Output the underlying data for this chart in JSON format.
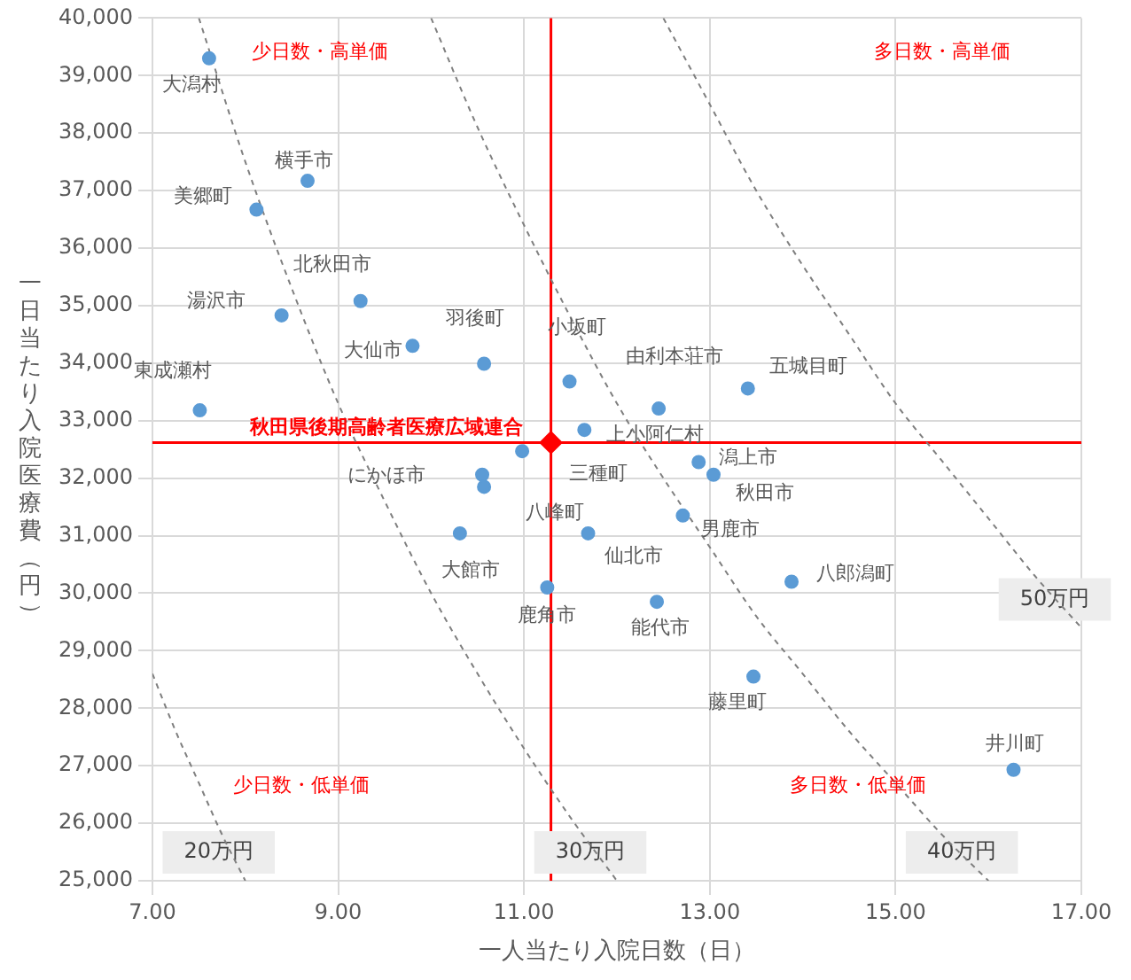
{
  "chart_data": {
    "type": "scatter",
    "xlabel": "一人当たり入院日数（日）",
    "ylabel": "一日当たり入院医療費（円）",
    "xlim": [
      7,
      17
    ],
    "xticks": [
      {
        "value": 7,
        "label": "7.00"
      },
      {
        "value": 9,
        "label": "9.00"
      },
      {
        "value": 11,
        "label": "11.00"
      },
      {
        "value": 13,
        "label": "13.00"
      },
      {
        "value": 15,
        "label": "15.00"
      },
      {
        "value": 17,
        "label": "17.00"
      }
    ],
    "ylim": [
      25000,
      40000
    ],
    "yticks": [
      {
        "value": 25000,
        "label": "25,000"
      },
      {
        "value": 26000,
        "label": "26,000"
      },
      {
        "value": 27000,
        "label": "27,000"
      },
      {
        "value": 28000,
        "label": "28,000"
      },
      {
        "value": 29000,
        "label": "29,000"
      },
      {
        "value": 30000,
        "label": "30,000"
      },
      {
        "value": 31000,
        "label": "31,000"
      },
      {
        "value": 32000,
        "label": "32,000"
      },
      {
        "value": 33000,
        "label": "33,000"
      },
      {
        "value": 34000,
        "label": "34,000"
      },
      {
        "value": 35000,
        "label": "35,000"
      },
      {
        "value": 36000,
        "label": "36,000"
      },
      {
        "value": 37000,
        "label": "37,000"
      },
      {
        "value": 38000,
        "label": "38,000"
      },
      {
        "value": 39000,
        "label": "39,000"
      },
      {
        "value": 40000,
        "label": "40,000"
      }
    ],
    "grid": true,
    "legend": false,
    "marker": "circle",
    "series": [
      {
        "type": "scatter",
        "color": "#5b9bd5",
        "x": [
          7.61,
          8.67,
          8.12,
          9.24,
          8.39,
          9.8,
          10.57,
          7.51,
          11.49,
          12.45,
          13.41,
          11.65,
          10.98,
          12.88,
          13.04,
          10.55,
          10.57,
          12.71,
          10.31,
          11.69,
          11.25,
          13.88,
          12.43,
          13.47,
          16.27
        ],
        "values": [
          39300,
          37170,
          36670,
          35080,
          34830,
          34300,
          33990,
          33180,
          33680,
          33210,
          33560,
          32840,
          32470,
          32280,
          32060,
          32060,
          31850,
          31350,
          31040,
          31040,
          30100,
          30200,
          29850,
          28550,
          26930
        ]
      },
      {
        "type": "scatter",
        "color": "#ff0000",
        "marker": "diamond",
        "x": [
          11.29
        ],
        "values": [
          32620
        ]
      },
      {
        "type": "line",
        "name": "20万円",
        "color": "#7f7f7f",
        "line_style": "dashed",
        "marker": "none",
        "x": [
          7,
          7.25,
          7.5,
          7.75,
          8
        ],
        "values": [
          28600,
          27600,
          26700,
          25800,
          25000
        ]
      },
      {
        "type": "line",
        "name": "30万円",
        "color": "#7f7f7f",
        "line_style": "dashed",
        "marker": "none",
        "x": [
          7.5,
          8,
          8.5,
          9,
          9.5,
          10,
          10.5,
          11,
          11.5,
          12
        ],
        "values": [
          40000,
          37500,
          35300,
          33300,
          31600,
          30000,
          28600,
          27300,
          26100,
          25000
        ]
      },
      {
        "type": "line",
        "name": "40万円",
        "color": "#7f7f7f",
        "line_style": "dashed",
        "marker": "none",
        "x": [
          10,
          10.5,
          11,
          11.5,
          12,
          12.5,
          13,
          13.5,
          14,
          14.5,
          15,
          15.5,
          16
        ],
        "values": [
          40000,
          38100,
          36400,
          34800,
          33300,
          32000,
          30800,
          29600,
          28600,
          27600,
          26700,
          25800,
          25000
        ]
      },
      {
        "type": "line",
        "name": "50万円",
        "color": "#7f7f7f",
        "line_style": "dashed",
        "marker": "none",
        "x": [
          12.5,
          13,
          13.5,
          14,
          14.5,
          15,
          15.5,
          16,
          16.5,
          17
        ],
        "values": [
          40000,
          38500,
          37000,
          35700,
          34500,
          33300,
          32300,
          31300,
          30300,
          29400
        ]
      }
    ],
    "ref_lines": [
      {
        "axis": "x",
        "value": 11.29,
        "color": "#ff0000"
      },
      {
        "axis": "y",
        "value": 32620,
        "color": "#ff0000"
      }
    ],
    "annotations": [
      {
        "text": "大潟村",
        "x": 7.61,
        "y": 39300
      },
      {
        "text": "横手市",
        "x": 8.67,
        "y": 37170
      },
      {
        "text": "美郷町",
        "x": 8.12,
        "y": 36670
      },
      {
        "text": "北秋田市",
        "x": 9.24,
        "y": 35080
      },
      {
        "text": "湯沢市",
        "x": 8.39,
        "y": 34830
      },
      {
        "text": "大仙市",
        "x": 9.8,
        "y": 34300
      },
      {
        "text": "羽後町",
        "x": 10.57,
        "y": 33990
      },
      {
        "text": "東成瀬村",
        "x": 7.51,
        "y": 33180
      },
      {
        "text": "小坂町",
        "x": 11.49,
        "y": 33680
      },
      {
        "text": "由利本荘市",
        "x": 12.45,
        "y": 33210
      },
      {
        "text": "五城目町",
        "x": 13.41,
        "y": 33560
      },
      {
        "text": "上小阿仁村",
        "x": 11.65,
        "y": 32840
      },
      {
        "text": "三種町",
        "x": 10.98,
        "y": 32470
      },
      {
        "text": "潟上市",
        "x": 12.88,
        "y": 32280
      },
      {
        "text": "秋田市",
        "x": 13.04,
        "y": 32060
      },
      {
        "text": "にかほ市",
        "x": 10.55,
        "y": 32060
      },
      {
        "text": "八峰町",
        "x": 10.57,
        "y": 31850
      },
      {
        "text": "男鹿市",
        "x": 12.71,
        "y": 31350
      },
      {
        "text": "大館市",
        "x": 10.31,
        "y": 31040
      },
      {
        "text": "仙北市",
        "x": 11.69,
        "y": 31040
      },
      {
        "text": "鹿角市",
        "x": 11.25,
        "y": 30100
      },
      {
        "text": "八郎潟町",
        "x": 13.88,
        "y": 30200
      },
      {
        "text": "能代市",
        "x": 12.43,
        "y": 29850
      },
      {
        "text": "藤里町",
        "x": 13.47,
        "y": 28550
      },
      {
        "text": "井川町",
        "x": 16.27,
        "y": 26930
      },
      {
        "text": "秋田県後期高齢者医療広域連合",
        "x": 11.29,
        "y": 32620
      },
      "少日数・高単価",
      "多日数・高単価",
      "少日数・低単価",
      "多日数・低単価"
    ]
  }
}
